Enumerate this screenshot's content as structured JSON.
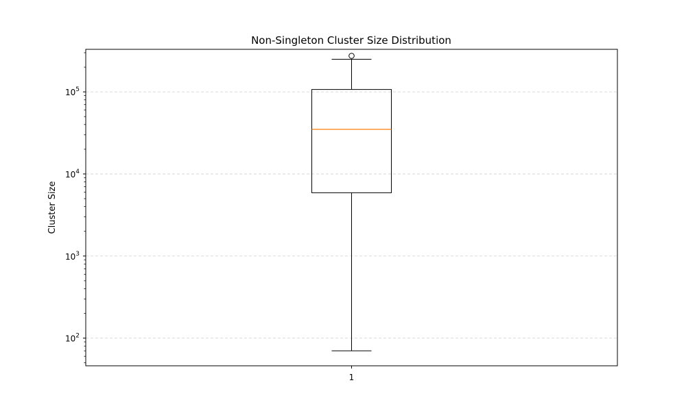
{
  "chart_data": {
    "type": "box",
    "title": "Non-Singleton Cluster Size Distribution",
    "xlabel": "",
    "ylabel": "Cluster Size",
    "yscale": "log",
    "ylim": [
      46,
      330000
    ],
    "grid": {
      "y": true,
      "x": false,
      "style": "dashed"
    },
    "x_tick_labels": [
      "1"
    ],
    "y_tick_labels": [
      {
        "value": 100,
        "base": "10",
        "exp": "2"
      },
      {
        "value": 1000,
        "base": "10",
        "exp": "3"
      },
      {
        "value": 10000,
        "base": "10",
        "exp": "4"
      },
      {
        "value": 100000,
        "base": "10",
        "exp": "5"
      }
    ],
    "boxes": [
      {
        "category": "1",
        "whisker_low": 70,
        "q1": 5900,
        "median": 35000,
        "q3": 107000,
        "whisker_high": 250000,
        "outliers": [
          275000
        ]
      }
    ],
    "colors": {
      "box": "#000000",
      "median": "#ff7f0e",
      "grid": "#b0b0b0"
    }
  }
}
